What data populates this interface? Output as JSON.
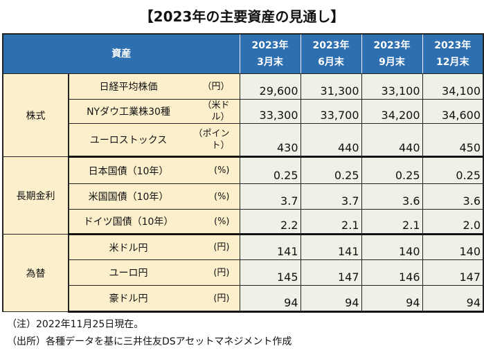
{
  "title": "【2023年の主要資産の見通し】",
  "header": {
    "asset": "資産",
    "periods": [
      [
        "2023年",
        "3月末"
      ],
      [
        "2023年",
        "6月末"
      ],
      [
        "2023年",
        "9月末"
      ],
      [
        "2023年",
        "12月末"
      ]
    ]
  },
  "groups": [
    {
      "name": "株式",
      "rows": [
        {
          "item": "日経平均株価",
          "unit": "（円）",
          "values": [
            "29,600",
            "31,300",
            "33,100",
            "34,100"
          ]
        },
        {
          "item": "NYダウ工業株30種",
          "unit": "（米ドル）",
          "values": [
            "33,300",
            "33,700",
            "34,200",
            "34,600"
          ]
        },
        {
          "item": "ユーロストックス",
          "unit": "（ポイント）",
          "values": [
            "430",
            "440",
            "440",
            "450"
          ]
        }
      ]
    },
    {
      "name": "長期金利",
      "rows": [
        {
          "item": "日本国債（10年）",
          "unit": "(%)",
          "values": [
            "0.25",
            "0.25",
            "0.25",
            "0.25"
          ]
        },
        {
          "item": "米国国債（10年）",
          "unit": "(%)",
          "values": [
            "3.7",
            "3.7",
            "3.6",
            "3.6"
          ]
        },
        {
          "item": "ドイツ国債（10年）",
          "unit": "(%)",
          "values": [
            "2.2",
            "2.1",
            "2.1",
            "2.0"
          ]
        }
      ]
    },
    {
      "name": "為替",
      "rows": [
        {
          "item": "米ドル円",
          "unit": "(円)",
          "values": [
            "141",
            "141",
            "140",
            "140"
          ]
        },
        {
          "item": "ユーロ円",
          "unit": "(円)",
          "values": [
            "145",
            "147",
            "146",
            "147"
          ]
        },
        {
          "item": "豪ドル円",
          "unit": "(円)",
          "values": [
            "94",
            "94",
            "94",
            "94"
          ]
        }
      ]
    }
  ],
  "notes": [
    "（注）2022年11月25日現在。",
    "（出所）各種データを基に三井住友DSアセットマネジメント作成"
  ]
}
